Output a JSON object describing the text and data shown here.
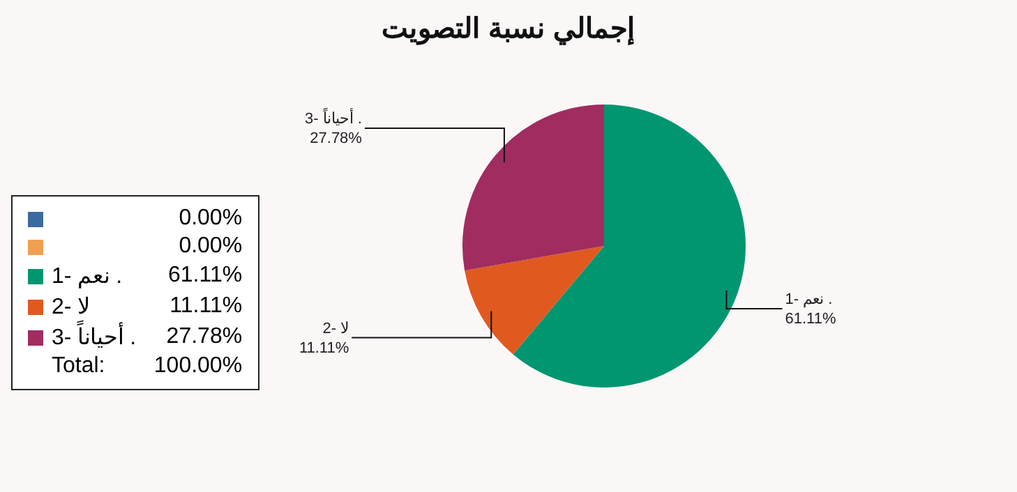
{
  "chart_data": {
    "type": "pie",
    "title": "إجمالي نسبة التصويت",
    "categories": [
      null,
      null,
      "1- نعم .",
      "2- لا",
      "3- أحياناً ."
    ],
    "values": [
      0,
      0,
      61.11,
      11.11,
      27.78
    ],
    "value_labels": [
      "0.00%",
      "0.00%",
      "61.11%",
      "11.11%",
      "27.78%"
    ],
    "colors": [
      "#3b6aa0",
      "#f0a050",
      "#009670",
      "#e05a20",
      "#a02c60"
    ],
    "annotations": [
      "Total:",
      "100.00%"
    ],
    "legend": "left"
  }
}
